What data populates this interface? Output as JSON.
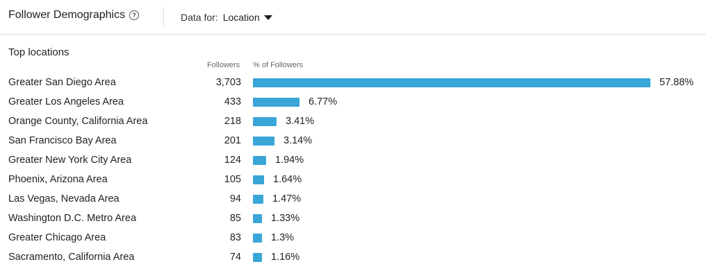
{
  "header": {
    "title": "Follower Demographics",
    "help_icon": "question-circle-icon",
    "data_for_label": "Data for:",
    "data_for_value": "Location"
  },
  "section": {
    "title": "Top locations",
    "col_followers": "Followers",
    "col_percent": "% of Followers"
  },
  "colors": {
    "bar": "#3aa6d8"
  },
  "chart_data": {
    "type": "bar",
    "categories": [
      "Greater San Diego Area",
      "Greater Los Angeles Area",
      "Orange County, California Area",
      "San Francisco Bay Area",
      "Greater New York City Area",
      "Phoenix, Arizona Area",
      "Las Vegas, Nevada Area",
      "Washington D.C. Metro Area",
      "Greater Chicago Area",
      "Sacramento, California Area"
    ],
    "followers": [
      "3,703",
      "433",
      "218",
      "201",
      "124",
      "105",
      "94",
      "85",
      "83",
      "74"
    ],
    "values": [
      57.88,
      6.77,
      3.41,
      3.14,
      1.94,
      1.64,
      1.47,
      1.33,
      1.3,
      1.16
    ],
    "value_labels": [
      "57.88%",
      "6.77%",
      "3.41%",
      "3.14%",
      "1.94%",
      "1.64%",
      "1.47%",
      "1.33%",
      "1.3%",
      "1.16%"
    ],
    "xlabel": "% of Followers",
    "ylabel": ""
  }
}
